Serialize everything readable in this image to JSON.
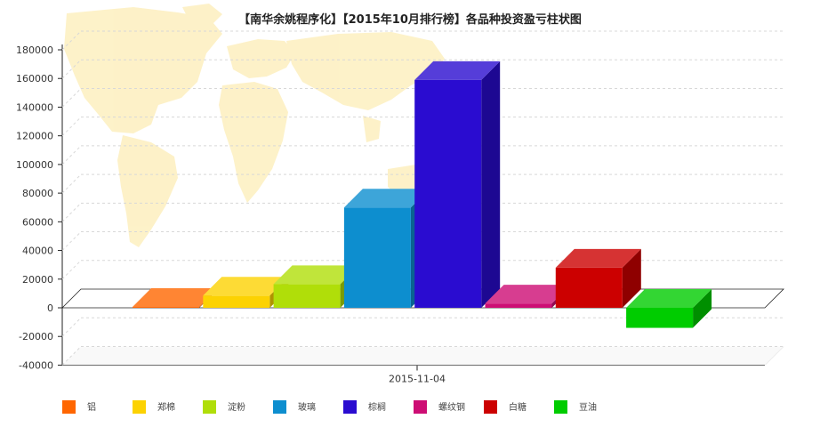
{
  "chart_data": {
    "type": "bar",
    "title": "【南华余姚程序化】【2015年10月排行榜】各品种投资盈亏柱状图",
    "xlabel": "",
    "ylabel": "",
    "categories": [
      "2015-11-04"
    ],
    "ylim": [
      -40000,
      180000
    ],
    "yticks": [
      180000,
      160000,
      140000,
      120000,
      100000,
      80000,
      60000,
      40000,
      20000,
      0,
      -20000,
      -40000
    ],
    "grid": true,
    "legend_position": "bottom",
    "series": [
      {
        "name": "铝",
        "color": "#FF6600",
        "values": [
          600
        ]
      },
      {
        "name": "郑棉",
        "color": "#FCD202",
        "values": [
          8500
        ]
      },
      {
        "name": "淀粉",
        "color": "#B0DE09",
        "values": [
          16500
        ]
      },
      {
        "name": "玻璃",
        "color": "#0D8ECF",
        "values": [
          70000
        ]
      },
      {
        "name": "棕榈",
        "color": "#2A0CD0",
        "values": [
          159000
        ]
      },
      {
        "name": "螺纹钢",
        "color": "#CD0D74",
        "values": [
          3000
        ]
      },
      {
        "name": "白糖",
        "color": "#CC0000",
        "values": [
          28000
        ]
      },
      {
        "name": "豆油",
        "color": "#00CC00",
        "values": [
          -14000
        ]
      }
    ]
  }
}
